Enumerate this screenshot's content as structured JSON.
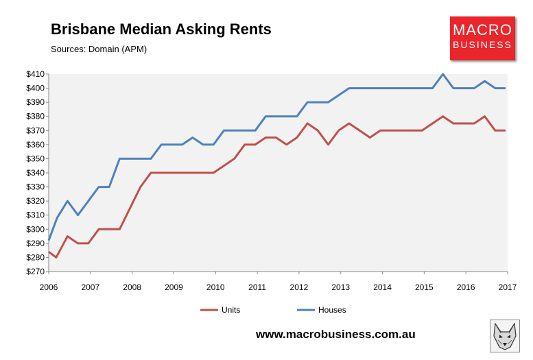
{
  "title": "Brisbane Median Asking Rents",
  "subtitle": "Sources: Domain (APM)",
  "logo": {
    "line1": "MACRO",
    "line2": "BUSINESS"
  },
  "website": "www.macrobusiness.com.au",
  "icons": {
    "logo_badge": "wolf-icon"
  },
  "colors": {
    "units": "#c0504d",
    "houses": "#4f81bd",
    "plot_bg": "#f2f2f2",
    "logo_bg": "#e8262b"
  },
  "chart_data": {
    "type": "line",
    "title": "Brisbane Median Asking Rents",
    "subtitle": "Sources: Domain (APM)",
    "xlabel": "",
    "ylabel": "",
    "xlim": [
      2006,
      2017
    ],
    "ylim": [
      270,
      410
    ],
    "x_ticks": [
      "2006",
      "2007",
      "2008",
      "2009",
      "2010",
      "2011",
      "2012",
      "2013",
      "2014",
      "2015",
      "2016",
      "2017"
    ],
    "y_ticks": [
      "$270",
      "$280",
      "$290",
      "$300",
      "$310",
      "$320",
      "$330",
      "$340",
      "$350",
      "$360",
      "$370",
      "$380",
      "$390",
      "$400",
      "$410"
    ],
    "grid": false,
    "legend_position": "bottom",
    "series": [
      {
        "name": "Units",
        "color": "#c0504d",
        "x": [
          2006,
          2006.18,
          2006.45,
          2006.7,
          2006.95,
          2007.2,
          2007.45,
          2007.7,
          2007.95,
          2008.2,
          2008.45,
          2008.7,
          2008.95,
          2009.2,
          2009.45,
          2009.7,
          2009.95,
          2010.2,
          2010.45,
          2010.7,
          2010.95,
          2011.2,
          2011.45,
          2011.7,
          2011.95,
          2012.2,
          2012.45,
          2012.7,
          2012.95,
          2013.2,
          2013.45,
          2013.7,
          2013.95,
          2014.2,
          2014.45,
          2014.7,
          2014.95,
          2015.2,
          2015.45,
          2015.7,
          2015.95,
          2016.2,
          2016.45,
          2016.7,
          2016.95
        ],
        "values": [
          284,
          280,
          295,
          290,
          290,
          300,
          300,
          300,
          315,
          330,
          340,
          340,
          340,
          340,
          340,
          340,
          340,
          345,
          350,
          360,
          360,
          365,
          365,
          360,
          365,
          375,
          370,
          360,
          370,
          375,
          370,
          365,
          370,
          370,
          370,
          370,
          370,
          375,
          380,
          375,
          375,
          375,
          380,
          370,
          370
        ]
      },
      {
        "name": "Houses",
        "color": "#4f81bd",
        "x": [
          2006,
          2006.2,
          2006.45,
          2006.7,
          2006.95,
          2007.2,
          2007.45,
          2007.7,
          2007.95,
          2008.2,
          2008.45,
          2008.7,
          2008.95,
          2009.2,
          2009.45,
          2009.7,
          2009.95,
          2010.2,
          2010.45,
          2010.7,
          2010.95,
          2011.2,
          2011.45,
          2011.7,
          2011.95,
          2012.2,
          2012.45,
          2012.7,
          2012.95,
          2013.2,
          2013.45,
          2013.7,
          2013.95,
          2014.2,
          2014.45,
          2014.7,
          2014.95,
          2015.2,
          2015.45,
          2015.7,
          2015.95,
          2016.2,
          2016.45,
          2016.7,
          2016.95
        ],
        "values": [
          292,
          308,
          320,
          310,
          320,
          330,
          330,
          350,
          350,
          350,
          350,
          360,
          360,
          360,
          365,
          360,
          360,
          370,
          370,
          370,
          370,
          380,
          380,
          380,
          380,
          390,
          390,
          390,
          395,
          400,
          400,
          400,
          400,
          400,
          400,
          400,
          400,
          400,
          410,
          400,
          400,
          400,
          405,
          400,
          400
        ]
      }
    ]
  }
}
